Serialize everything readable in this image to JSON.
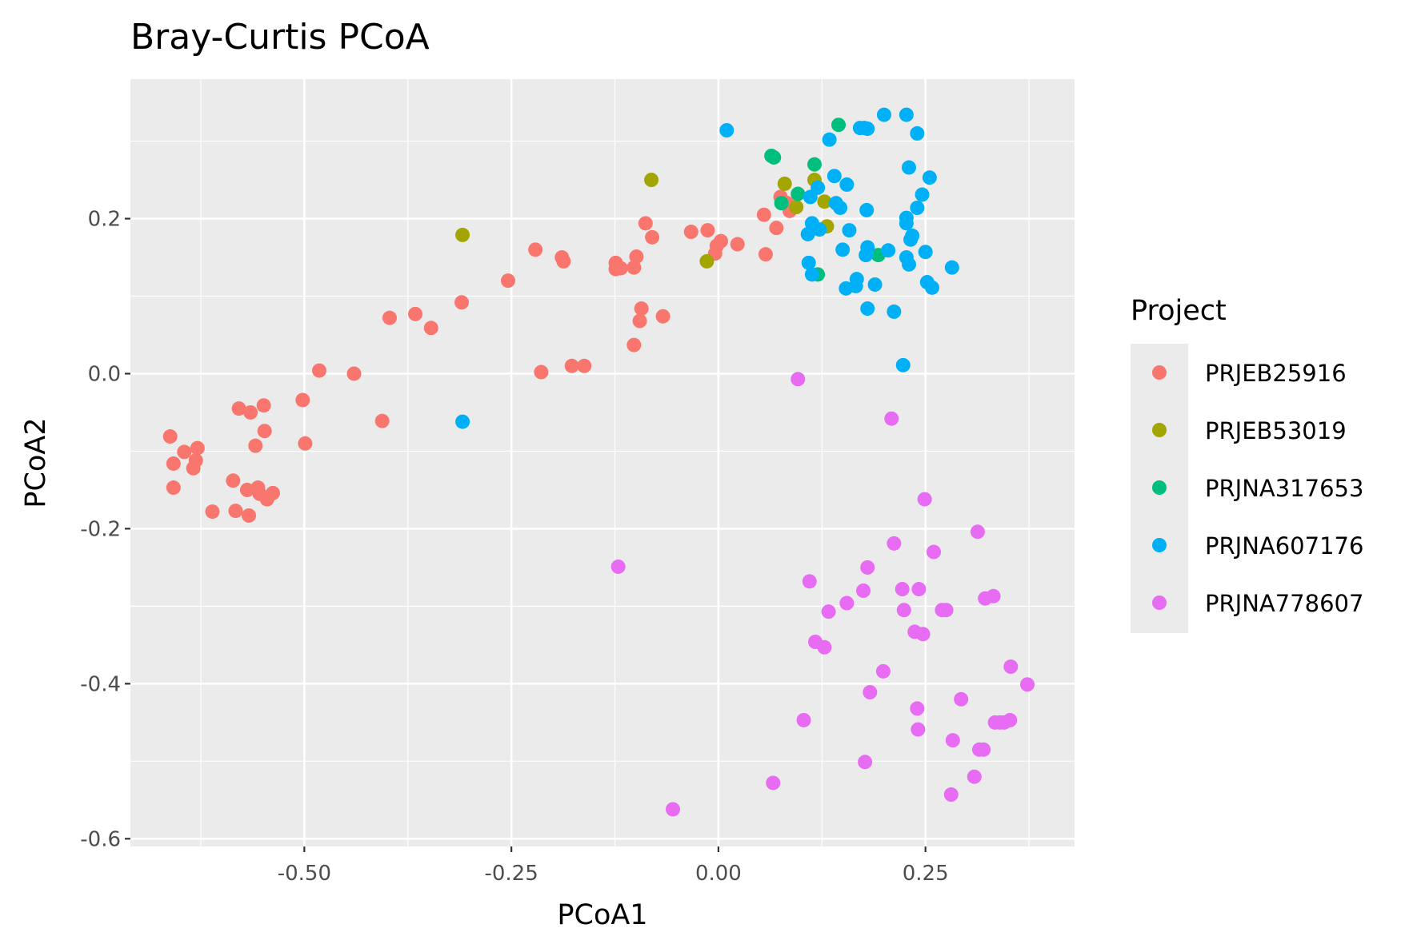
{
  "chart_data": {
    "type": "scatter",
    "title": "Bray-Curtis PCoA",
    "xlabel": "PCoA1",
    "ylabel": "PCoA2",
    "xlim": [
      -0.71,
      0.43
    ],
    "ylim": [
      -0.61,
      0.38
    ],
    "x_ticks": [
      -0.5,
      -0.25,
      0.0,
      0.25
    ],
    "x_tick_labels": [
      "-0.50",
      "-0.25",
      "0.00",
      "0.25"
    ],
    "y_ticks": [
      -0.6,
      -0.4,
      -0.2,
      0.0,
      0.2
    ],
    "y_tick_labels": [
      "-0.6",
      "-0.4",
      "-0.2",
      "0.0",
      "0.2"
    ],
    "grid": true,
    "legend_title": "Project",
    "legend_position": "right",
    "series": [
      {
        "name": "PRJEB25916",
        "color": "#F8766D",
        "points": [
          [
            -0.662,
            -0.081
          ],
          [
            -0.658,
            -0.116
          ],
          [
            -0.658,
            -0.147
          ],
          [
            -0.645,
            -0.101
          ],
          [
            -0.634,
            -0.122
          ],
          [
            -0.631,
            -0.112
          ],
          [
            -0.629,
            -0.096
          ],
          [
            -0.611,
            -0.178
          ],
          [
            -0.586,
            -0.138
          ],
          [
            -0.583,
            -0.177
          ],
          [
            -0.579,
            -0.045
          ],
          [
            -0.569,
            -0.15
          ],
          [
            -0.567,
            -0.183
          ],
          [
            -0.565,
            -0.05
          ],
          [
            -0.559,
            -0.093
          ],
          [
            -0.556,
            -0.147
          ],
          [
            -0.554,
            -0.155
          ],
          [
            -0.549,
            -0.041
          ],
          [
            -0.548,
            -0.074
          ],
          [
            -0.545,
            -0.162
          ],
          [
            -0.538,
            -0.154
          ],
          [
            -0.502,
            -0.034
          ],
          [
            -0.499,
            -0.09
          ],
          [
            -0.482,
            0.004
          ],
          [
            -0.44,
            0.0
          ],
          [
            -0.406,
            -0.061
          ],
          [
            -0.397,
            0.072
          ],
          [
            -0.366,
            0.077
          ],
          [
            -0.347,
            0.059
          ],
          [
            -0.31,
            0.092
          ],
          [
            -0.254,
            0.12
          ],
          [
            -0.221,
            0.16
          ],
          [
            -0.214,
            0.002
          ],
          [
            -0.189,
            0.15
          ],
          [
            -0.187,
            0.145
          ],
          [
            -0.177,
            0.01
          ],
          [
            -0.162,
            0.01
          ],
          [
            -0.124,
            0.143
          ],
          [
            -0.124,
            0.135
          ],
          [
            -0.118,
            0.136
          ],
          [
            -0.102,
            0.137
          ],
          [
            -0.099,
            0.151
          ],
          [
            -0.102,
            0.037
          ],
          [
            -0.095,
            0.068
          ],
          [
            -0.093,
            0.084
          ],
          [
            -0.088,
            0.194
          ],
          [
            -0.08,
            0.176
          ],
          [
            -0.067,
            0.074
          ],
          [
            -0.033,
            0.183
          ],
          [
            -0.013,
            0.185
          ],
          [
            -0.004,
            0.155
          ],
          [
            -0.002,
            0.165
          ],
          [
            0.003,
            0.171
          ],
          [
            0.023,
            0.167
          ],
          [
            0.055,
            0.205
          ],
          [
            0.057,
            0.154
          ],
          [
            0.07,
            0.188
          ],
          [
            0.075,
            0.228
          ],
          [
            0.083,
            0.22
          ],
          [
            0.086,
            0.21
          ]
        ]
      },
      {
        "name": "PRJEB53019",
        "color": "#A3A500",
        "points": [
          [
            -0.309,
            0.179
          ],
          [
            -0.081,
            0.25
          ],
          [
            -0.014,
            0.145
          ],
          [
            0.08,
            0.245
          ],
          [
            0.094,
            0.215
          ],
          [
            0.116,
            0.25
          ],
          [
            0.128,
            0.222
          ],
          [
            0.131,
            0.19
          ]
        ]
      },
      {
        "name": "PRJNA317653",
        "color": "#00BF7D",
        "points": [
          [
            0.064,
            0.281
          ],
          [
            0.067,
            0.279
          ],
          [
            0.076,
            0.22
          ],
          [
            0.096,
            0.232
          ],
          [
            0.116,
            0.27
          ],
          [
            0.12,
            0.128
          ],
          [
            0.145,
            0.321
          ],
          [
            0.193,
            0.153
          ]
        ]
      },
      {
        "name": "PRJNA607176",
        "color": "#00B0F6",
        "points": [
          [
            -0.309,
            -0.062
          ],
          [
            0.01,
            0.314
          ],
          [
            0.108,
            0.18
          ],
          [
            0.109,
            0.143
          ],
          [
            0.111,
            0.228
          ],
          [
            0.113,
            0.194
          ],
          [
            0.113,
            0.128
          ],
          [
            0.12,
            0.24
          ],
          [
            0.122,
            0.186
          ],
          [
            0.134,
            0.302
          ],
          [
            0.14,
            0.255
          ],
          [
            0.142,
            0.22
          ],
          [
            0.147,
            0.214
          ],
          [
            0.15,
            0.16
          ],
          [
            0.154,
            0.11
          ],
          [
            0.155,
            0.244
          ],
          [
            0.158,
            0.185
          ],
          [
            0.166,
            0.113
          ],
          [
            0.167,
            0.122
          ],
          [
            0.171,
            0.317
          ],
          [
            0.176,
            0.317
          ],
          [
            0.18,
            0.316
          ],
          [
            0.179,
            0.211
          ],
          [
            0.178,
            0.153
          ],
          [
            0.18,
            0.163
          ],
          [
            0.18,
            0.084
          ],
          [
            0.189,
            0.115
          ],
          [
            0.2,
            0.334
          ],
          [
            0.205,
            0.159
          ],
          [
            0.212,
            0.08
          ],
          [
            0.223,
            0.011
          ],
          [
            0.227,
            0.334
          ],
          [
            0.227,
            0.201
          ],
          [
            0.227,
            0.194
          ],
          [
            0.227,
            0.15
          ],
          [
            0.23,
            0.141
          ],
          [
            0.23,
            0.266
          ],
          [
            0.232,
            0.173
          ],
          [
            0.234,
            0.178
          ],
          [
            0.24,
            0.31
          ],
          [
            0.24,
            0.214
          ],
          [
            0.246,
            0.231
          ],
          [
            0.25,
            0.157
          ],
          [
            0.252,
            0.118
          ],
          [
            0.255,
            0.253
          ],
          [
            0.258,
            0.111
          ],
          [
            0.282,
            0.137
          ]
        ]
      },
      {
        "name": "PRJNA778607",
        "color": "#E76BF3",
        "points": [
          [
            -0.121,
            -0.249
          ],
          [
            -0.055,
            -0.562
          ],
          [
            0.066,
            -0.528
          ],
          [
            0.096,
            -0.007
          ],
          [
            0.103,
            -0.447
          ],
          [
            0.11,
            -0.268
          ],
          [
            0.117,
            -0.346
          ],
          [
            0.128,
            -0.353
          ],
          [
            0.133,
            -0.307
          ],
          [
            0.155,
            -0.296
          ],
          [
            0.175,
            -0.28
          ],
          [
            0.177,
            -0.501
          ],
          [
            0.18,
            -0.25
          ],
          [
            0.183,
            -0.411
          ],
          [
            0.199,
            -0.384
          ],
          [
            0.209,
            -0.058
          ],
          [
            0.212,
            -0.219
          ],
          [
            0.222,
            -0.278
          ],
          [
            0.224,
            -0.305
          ],
          [
            0.237,
            -0.333
          ],
          [
            0.24,
            -0.432
          ],
          [
            0.241,
            -0.459
          ],
          [
            0.242,
            -0.278
          ],
          [
            0.247,
            -0.336
          ],
          [
            0.249,
            -0.162
          ],
          [
            0.26,
            -0.23
          ],
          [
            0.27,
            -0.305
          ],
          [
            0.275,
            -0.305
          ],
          [
            0.281,
            -0.543
          ],
          [
            0.283,
            -0.473
          ],
          [
            0.293,
            -0.42
          ],
          [
            0.309,
            -0.52
          ],
          [
            0.313,
            -0.204
          ],
          [
            0.315,
            -0.485
          ],
          [
            0.32,
            -0.485
          ],
          [
            0.322,
            -0.29
          ],
          [
            0.332,
            -0.287
          ],
          [
            0.334,
            -0.45
          ],
          [
            0.34,
            -0.45
          ],
          [
            0.345,
            -0.45
          ],
          [
            0.352,
            -0.447
          ],
          [
            0.353,
            -0.378
          ],
          [
            0.373,
            -0.401
          ]
        ]
      }
    ]
  }
}
